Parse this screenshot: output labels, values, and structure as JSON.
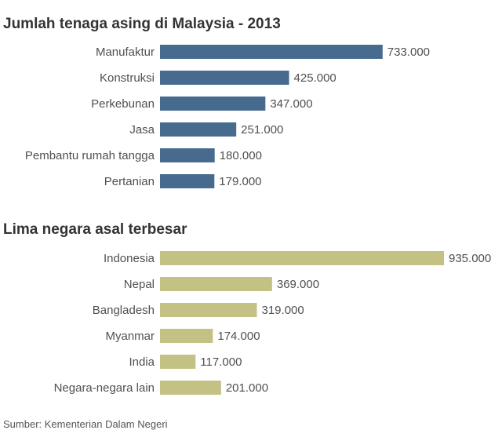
{
  "source": "Sumber: Kementerian Dalam Negeri",
  "chart_data": [
    {
      "type": "bar",
      "orientation": "horizontal",
      "title": "Jumlah tenaga asing di Malaysia - 2013",
      "color": "#466b8e",
      "categories": [
        "Manufaktur",
        "Konstruksi",
        "Perkebunan",
        "Jasa",
        "Pembantu rumah tangga",
        "Pertanian"
      ],
      "values": [
        733000,
        425000,
        347000,
        251000,
        180000,
        179000
      ],
      "value_labels": [
        "733.000",
        "425.000",
        "347.000",
        "251.000",
        "180.000",
        "179.000"
      ],
      "xlim": [
        0,
        935000
      ],
      "grid": false,
      "legend": "none"
    },
    {
      "type": "bar",
      "orientation": "horizontal",
      "title": "Lima negara asal terbesar",
      "color": "#c4c185",
      "categories": [
        "Indonesia",
        "Nepal",
        "Bangladesh",
        "Myanmar",
        "India",
        "Negara-negara lain"
      ],
      "values": [
        935000,
        369000,
        319000,
        174000,
        117000,
        201000
      ],
      "value_labels": [
        "935.000",
        "369.000",
        "319.000",
        "174.000",
        "117.000",
        "201.000"
      ],
      "xlim": [
        0,
        935000
      ],
      "grid": false,
      "legend": "none"
    }
  ]
}
